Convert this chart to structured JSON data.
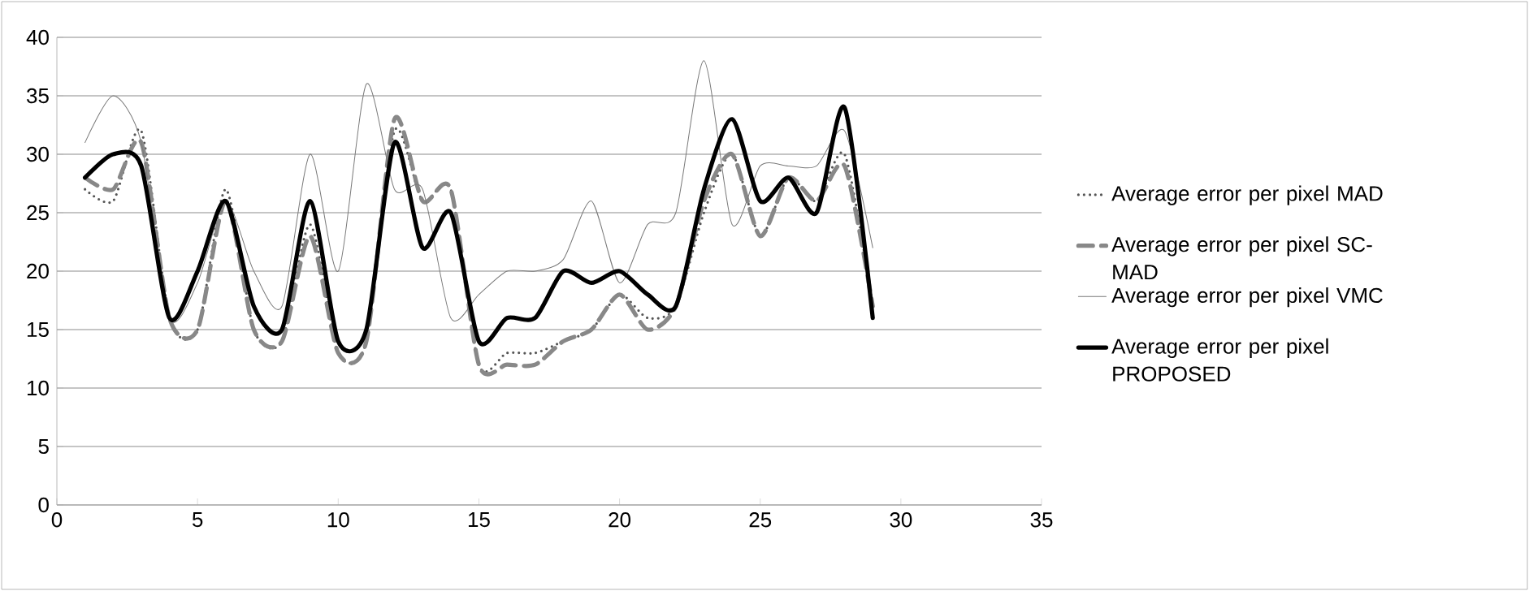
{
  "chart_data": {
    "type": "line",
    "x": [
      1,
      2,
      3,
      4,
      5,
      6,
      7,
      8,
      9,
      10,
      11,
      12,
      13,
      14,
      15,
      16,
      17,
      18,
      19,
      20,
      21,
      22,
      23,
      24,
      25,
      26,
      27,
      28,
      29
    ],
    "xlim": [
      0,
      35
    ],
    "xticks": [
      0,
      5,
      10,
      15,
      20,
      25,
      30,
      35
    ],
    "ylim": [
      0,
      40
    ],
    "yticks": [
      0,
      5,
      10,
      15,
      20,
      25,
      30,
      35,
      40
    ],
    "grid": "y",
    "legend": "right",
    "marker": "none",
    "series": [
      {
        "name": "Average error per pixel MAD",
        "color": "#555555",
        "line_style": "dotted",
        "values": [
          27,
          26,
          32,
          16,
          15,
          27,
          15,
          14,
          24,
          13,
          14,
          32,
          26,
          27,
          12,
          13,
          13,
          14,
          15,
          18,
          16,
          17,
          25,
          30,
          23,
          28,
          26,
          30,
          17
        ]
      },
      {
        "name": "Average error per pixel SC-MAD",
        "color": "#888888",
        "line_style": "dashed",
        "values": [
          28,
          27,
          31,
          16,
          15,
          26,
          15,
          14,
          23,
          13,
          14,
          33,
          26,
          27,
          12,
          12,
          12,
          14,
          15,
          18,
          15,
          17,
          26,
          30,
          23,
          28,
          26,
          29,
          17
        ]
      },
      {
        "name": "Average error per pixel VMC",
        "color": "#7a7a7a",
        "line_style": "solid",
        "values": [
          31,
          35,
          31,
          16,
          19,
          26,
          20,
          17,
          30,
          20,
          36,
          27,
          27,
          16,
          18,
          20,
          20,
          21,
          26,
          19,
          24,
          25,
          38,
          24,
          29,
          29,
          29,
          32,
          22
        ]
      },
      {
        "name": "Average error per pixel PROPOSED",
        "color": "#000000",
        "line_style": "solid",
        "values": [
          28,
          30,
          29,
          16,
          20,
          26,
          17,
          15,
          26,
          14,
          15,
          31,
          22,
          25,
          14,
          16,
          16,
          20,
          19,
          20,
          18,
          17,
          27,
          33,
          26,
          28,
          25,
          34,
          16
        ]
      }
    ]
  }
}
